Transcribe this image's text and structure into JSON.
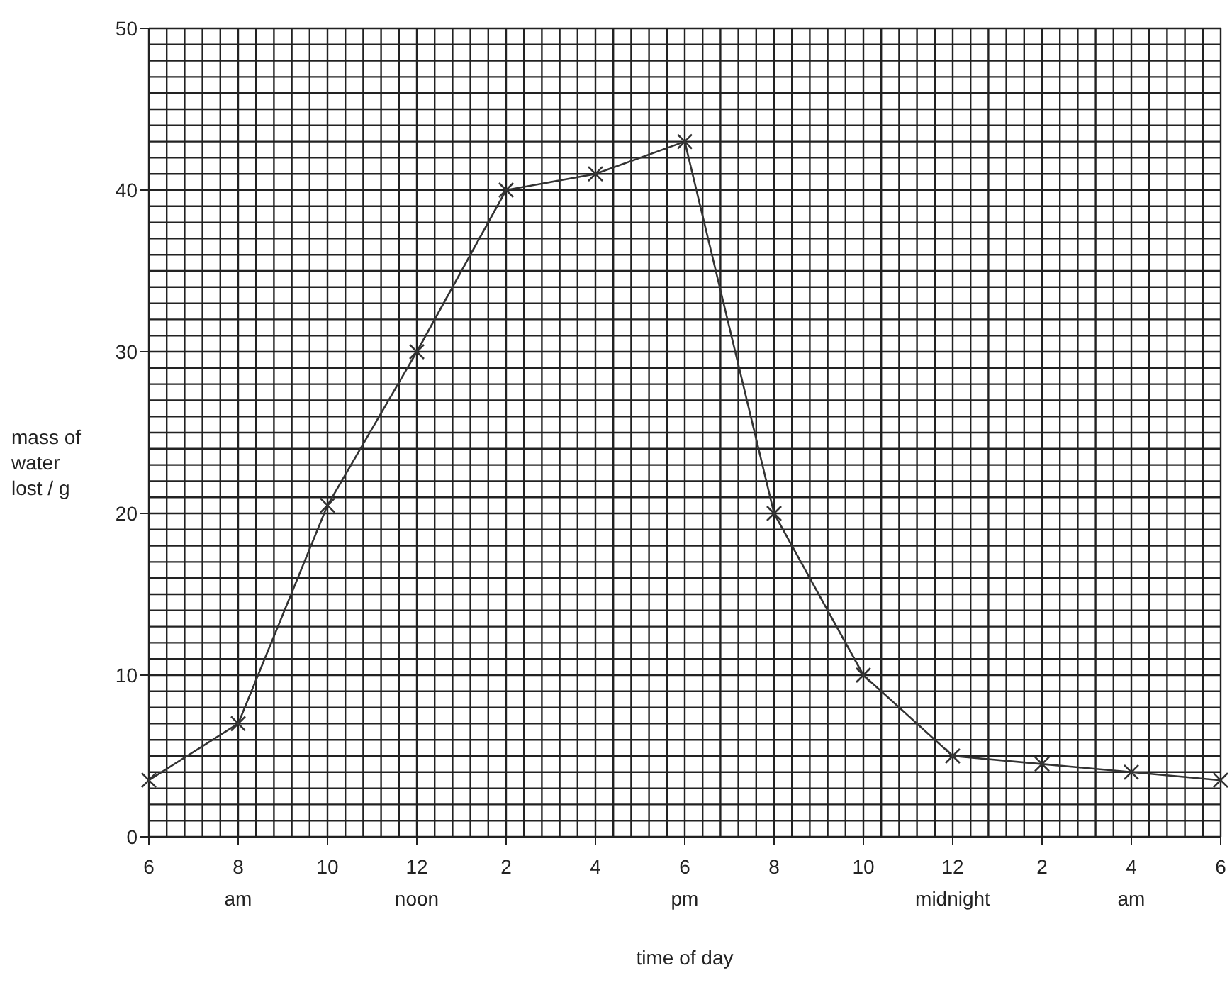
{
  "chart_data": {
    "type": "line",
    "xlabel": "time of day",
    "ylabel": "mass of\nwater\nlost / g",
    "categories": [
      "6",
      "8\nam",
      "10",
      "12\nnoon",
      "2",
      "4",
      "6\npm",
      "8",
      "10",
      "12\nmidnight",
      "2",
      "4\nam",
      "6"
    ],
    "series": [
      {
        "color": "#333333",
        "values": [
          3.5,
          7,
          20.5,
          30,
          40,
          41,
          43,
          20,
          10,
          5,
          4.5,
          4,
          3.5
        ]
      }
    ],
    "ylim": [
      0,
      50
    ],
    "yticks": [
      0,
      10,
      20,
      30,
      40,
      50
    ],
    "grid": true,
    "marker": "cross",
    "line_style": "solid"
  }
}
